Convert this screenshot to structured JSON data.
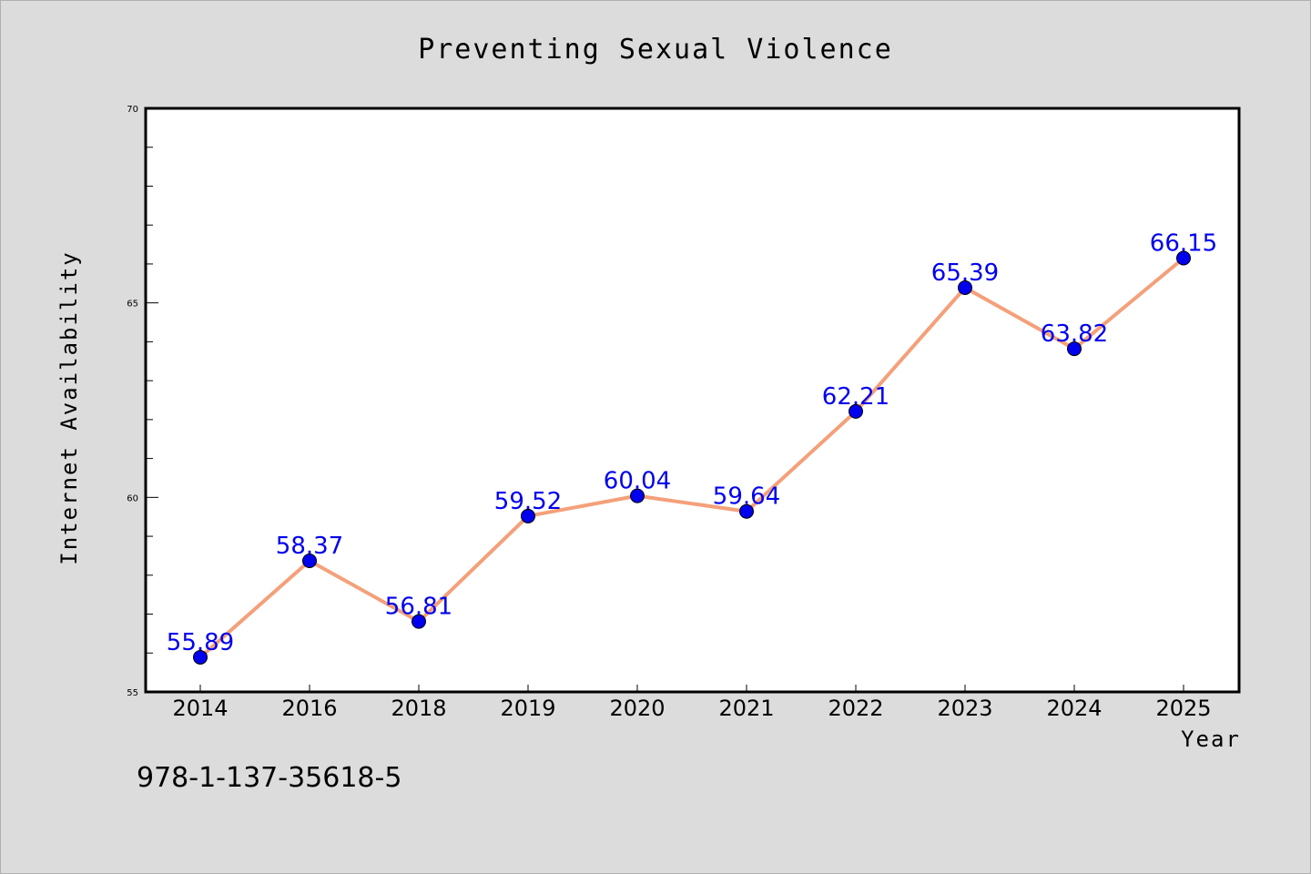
{
  "chart_data": {
    "type": "line",
    "title": "Preventing Sexual Violence",
    "xlabel": "Year",
    "ylabel": "Internet Availability",
    "categories": [
      "2014",
      "2016",
      "2018",
      "2019",
      "2020",
      "2021",
      "2022",
      "2023",
      "2024",
      "2025"
    ],
    "series": [
      {
        "values": [
          55.89,
          58.37,
          56.81,
          59.52,
          60.04,
          59.64,
          62.21,
          65.39,
          63.82,
          66.15
        ],
        "labels": [
          "55.89",
          "58.37",
          "56.81",
          "59.52",
          "60.04",
          "59.64",
          "62.21",
          "65.39",
          "63.82",
          "66.15"
        ],
        "line_color": "#f4a07a",
        "marker_color": "#0000ee"
      }
    ],
    "ylim": [
      55,
      70
    ],
    "yticks": [
      "55",
      "60",
      "65",
      "70"
    ],
    "grid": false,
    "legend": "none"
  },
  "footer_text": "978-1-137-35618-5",
  "colors": {
    "background": "#dcdcdc",
    "plot_area": "#ffffff",
    "line": "#f4a07a",
    "marker": "#0000ee",
    "data_label": "#0000ee"
  }
}
